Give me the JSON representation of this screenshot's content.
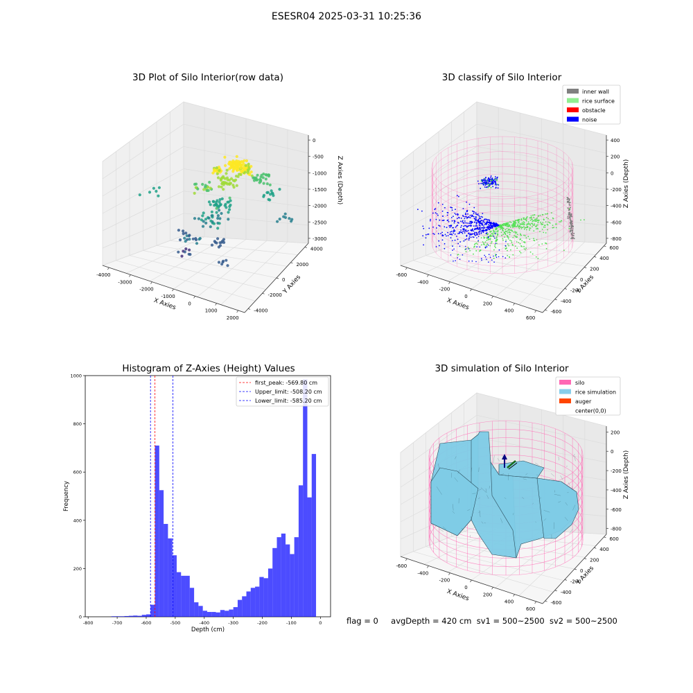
{
  "figure": {
    "suptitle": "ESESR04 2025-03-31 10:25:36"
  },
  "footer": {
    "flag": "flag = 0",
    "avgDepth": "avgDepth = 420 cm",
    "sv1": "sv1 = 500~2500",
    "sv2": "sv2 = 500~2500"
  },
  "chart_data": [
    {
      "type": "scatter",
      "projection": "3d",
      "title": "3D Plot of Silo Interior(row data)",
      "xlabel": "X Axies",
      "ylabel": "Y Axies",
      "zlabel": "Z Axies (Depth)",
      "x_ticks": [
        "-4000",
        "-3000",
        "-2000",
        "-1000",
        "0",
        "1000",
        "2000"
      ],
      "y_ticks": [
        "-4000",
        "-2000",
        "0",
        "2000",
        "4000"
      ],
      "z_ticks": [
        "0",
        "-500",
        "-1000",
        "-1500",
        "-2000",
        "-2500",
        "-3000"
      ],
      "colormap": "viridis",
      "note": "colour encodes depth; yellow points near the top, purple points deepest"
    },
    {
      "type": "scatter",
      "projection": "3d",
      "title": "3D classify of Silo Interior",
      "xlabel": "X Axies",
      "ylabel": "Y Axies",
      "zlabel": "Z Axies (Depth)",
      "x_ticks": [
        "-600",
        "-400",
        "-200",
        "0",
        "200",
        "400",
        "600"
      ],
      "y_ticks": [
        "-600",
        "-400",
        "-200",
        "0",
        "200",
        "400",
        "600"
      ],
      "z_ticks": [
        "400",
        "200",
        "0",
        "-200",
        "-400",
        "-600",
        "-800"
      ],
      "legend_position": "top-right",
      "legend": [
        {
          "label": "inner wall",
          "color": "#808080"
        },
        {
          "label": "rice surface",
          "color": "#90ee90"
        },
        {
          "label": "obstacle",
          "color": "#ff0000"
        },
        {
          "label": "noise",
          "color": "#0000ff"
        }
      ],
      "wireframe_color": "#ff69b4"
    },
    {
      "type": "bar",
      "title": "Histogram of Z-Axies (Height) Values",
      "xlabel": "Depth (cm)",
      "ylabel": "Frequency",
      "xlim": [
        -810,
        35
      ],
      "ylim": [
        0,
        1000
      ],
      "x_ticks": [
        -800,
        -700,
        -600,
        -500,
        -400,
        -300,
        -200,
        -100,
        0
      ],
      "y_ticks": [
        0,
        200,
        400,
        600,
        800,
        1000
      ],
      "bar_color": "#0000ff",
      "bin_width": 15,
      "bin_starts": [
        -720,
        -705,
        -690,
        -675,
        -660,
        -645,
        -630,
        -615,
        -600,
        -585,
        -570,
        -555,
        -540,
        -525,
        -510,
        -495,
        -480,
        -465,
        -450,
        -435,
        -420,
        -405,
        -390,
        -375,
        -360,
        -345,
        -330,
        -315,
        -300,
        -285,
        -270,
        -255,
        -240,
        -225,
        -210,
        -195,
        -180,
        -165,
        -150,
        -135,
        -120,
        -105,
        -90,
        -75,
        -60,
        -45,
        -30,
        -15
      ],
      "values": [
        2,
        2,
        2,
        3,
        4,
        5,
        4,
        8,
        10,
        50,
        710,
        525,
        385,
        325,
        255,
        185,
        170,
        170,
        120,
        60,
        45,
        25,
        20,
        20,
        18,
        28,
        25,
        30,
        40,
        70,
        85,
        105,
        120,
        125,
        165,
        160,
        200,
        285,
        330,
        345,
        300,
        260,
        330,
        545,
        985,
        495,
        675,
        0
      ],
      "vlines": [
        {
          "label": "first_peak: -569.80 cm",
          "x": -569.8,
          "color": "#ff0000"
        },
        {
          "label": "Upper_limit: -508.20 cm",
          "x": -508.2,
          "color": "#0000ff"
        },
        {
          "label": "Lower_limit: -585.20 cm",
          "x": -585.2,
          "color": "#0000ff"
        }
      ],
      "legend_position": "top-right"
    },
    {
      "type": "surface",
      "projection": "3d",
      "title": "3D simulation of Silo Interior",
      "xlabel": "X Axies",
      "ylabel": "Y Axies",
      "zlabel": "Z Axies (Depth)",
      "x_ticks": [
        "-600",
        "-400",
        "-200",
        "0",
        "200",
        "400",
        "600"
      ],
      "y_ticks": [
        "-600",
        "-400",
        "-200",
        "0",
        "200",
        "400",
        "600"
      ],
      "z_ticks": [
        "200",
        "0",
        "-200",
        "-400",
        "-600",
        "-800"
      ],
      "legend_position": "top-right",
      "legend": [
        {
          "label": "silo",
          "color": "#ff69b4"
        },
        {
          "label": "rice simulation",
          "color": "#87ceeb"
        },
        {
          "label": "auger",
          "color": "#ff4500"
        },
        {
          "label": "center(0,0)",
          "color": ""
        }
      ]
    }
  ]
}
